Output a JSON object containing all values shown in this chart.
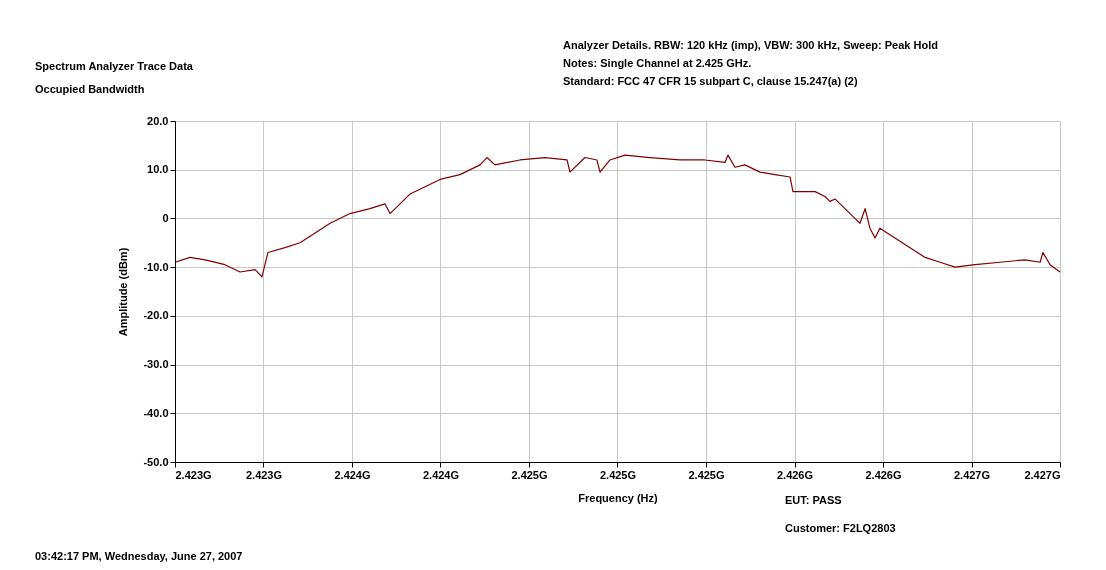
{
  "chart_data": {
    "type": "line",
    "title": "Spectrum Analyzer Trace Data",
    "subtitle": "Occupied Bandwidth",
    "xlabel": "Frequency (Hz)",
    "ylabel": "Amplitude (dBm)",
    "annotations": [
      "Analyzer Details.  RBW: 120 kHz (imp), VBW: 300  kHz, Sweep: Peak Hold",
      "Notes:  Single Channel at 2.425 GHz.",
      "Standard: FCC 47 CFR 15 subpart C, clause 15.247(a) (2)",
      "EUT: PASS",
      "Customer: F2LQ2803",
      "03:42:17 PM, Wednesday, June 27, 2007"
    ],
    "x": [
      2.423,
      2.423068,
      2.423136,
      2.423226,
      2.423294,
      2.423362,
      2.423393,
      2.42342,
      2.423497,
      2.423565,
      2.423633,
      2.423701,
      2.423791,
      2.423881,
      2.423949,
      2.423972,
      2.424062,
      2.424107,
      2.424198,
      2.424288,
      2.424379,
      2.42441,
      2.424446,
      2.424559,
      2.424672,
      2.424772,
      2.424785,
      2.424853,
      2.424907,
      2.424921,
      2.424966,
      2.425034,
      2.425147,
      2.425282,
      2.425395,
      2.425486,
      2.425499,
      2.425531,
      2.425576,
      2.425644,
      2.425712,
      2.42578,
      2.425793,
      2.425825,
      2.425893,
      2.425938,
      2.42596,
      2.425983,
      2.426073,
      2.426096,
      2.426119,
      2.426141,
      2.426164,
      2.426186,
      2.426254,
      2.426322,
      2.42639,
      2.426458,
      2.426525,
      2.426616,
      2.426729,
      2.426842,
      2.42691,
      2.426923,
      2.426955,
      2.427
    ],
    "series": [
      {
        "color": "#800000",
        "values": [
          -9,
          -8,
          -8.5,
          -9.5,
          -11,
          -10.5,
          -12,
          -7,
          -6,
          -5,
          -3,
          -1,
          1,
          2,
          3,
          1,
          5,
          6,
          8,
          9,
          11,
          12.5,
          11,
          12,
          12.5,
          12,
          9.5,
          12.5,
          12,
          9.5,
          12,
          13,
          12.5,
          12,
          12,
          11.5,
          13,
          10.5,
          11,
          9.5,
          9,
          8.5,
          5.5,
          5.5,
          5.5,
          4.5,
          3.5,
          4,
          0,
          -1,
          2,
          -2,
          -4,
          -2,
          -4,
          -6,
          -8,
          -9,
          -10,
          -9.5,
          -9,
          -8.5,
          -9,
          -7,
          -9.5,
          -11
        ]
      }
    ],
    "xlim": [
      2.423,
      2.427
    ],
    "xticks": [
      {
        "value": 2.423,
        "label": "2.423G"
      },
      {
        "value": 2.4234,
        "label": "2.423G"
      },
      {
        "value": 2.4238,
        "label": "2.424G"
      },
      {
        "value": 2.4242,
        "label": "2.424G"
      },
      {
        "value": 2.4246,
        "label": "2.425G"
      },
      {
        "value": 2.425,
        "label": "2.425G"
      },
      {
        "value": 2.4254,
        "label": "2.425G"
      },
      {
        "value": 2.4258,
        "label": "2.426G"
      },
      {
        "value": 2.4262,
        "label": "2.426G"
      },
      {
        "value": 2.4266,
        "label": "2.427G"
      },
      {
        "value": 2.427,
        "label": "2.427G"
      }
    ],
    "ylim": [
      -50,
      20
    ],
    "yticks": [
      {
        "value": -50,
        "label": "-50.0"
      },
      {
        "value": -40,
        "label": "-40.0"
      },
      {
        "value": -30,
        "label": "-30.0"
      },
      {
        "value": -20,
        "label": "-20.0"
      },
      {
        "value": -10,
        "label": "-10.0"
      },
      0,
      {
        "value": 10,
        "label": "10.0"
      },
      {
        "value": 20,
        "label": "20.0"
      }
    ],
    "grid": true,
    "marker": "none",
    "line_style": "solid"
  }
}
